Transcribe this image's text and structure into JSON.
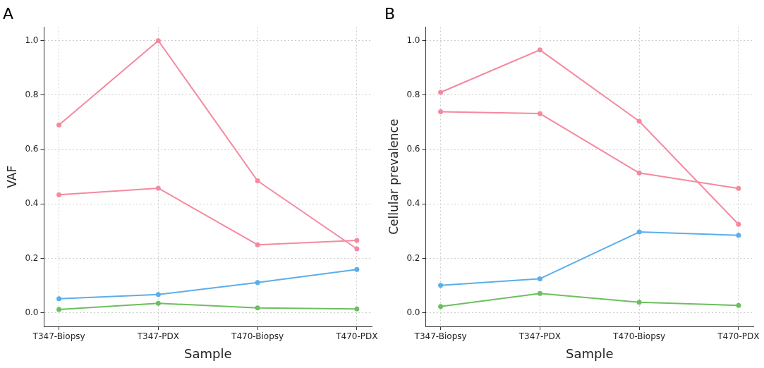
{
  "chart_data": [
    {
      "type": "line",
      "title": "A",
      "xlabel": "Sample",
      "ylabel": "VAF",
      "categories": [
        "T347-Biopsy",
        "T347-PDX",
        "T470-Biopsy",
        "T470-PDX"
      ],
      "ylim": [
        -0.05,
        1.05
      ],
      "yticks": [
        {
          "value": 0,
          "label": "0.0"
        },
        {
          "value": 0.2,
          "label": "0.2"
        },
        {
          "value": 0.4,
          "label": "0.4"
        },
        {
          "value": 0.6,
          "label": "0.6"
        },
        {
          "value": 0.8,
          "label": "0.8"
        },
        {
          "value": 1,
          "label": "1.0"
        }
      ],
      "grid": true,
      "legend": false,
      "marker": "circle",
      "line_style": "solid",
      "series": [
        {
          "color": "#f5899e",
          "values": [
            0.69,
            1.0,
            0.485,
            0.235
          ]
        },
        {
          "color": "#f5899e",
          "values": [
            0.434,
            0.458,
            0.25,
            0.266
          ]
        },
        {
          "color": "#5aaeea",
          "values": [
            0.052,
            0.067,
            0.111,
            0.159
          ]
        },
        {
          "color": "#6cbf5e",
          "values": [
            0.012,
            0.035,
            0.018,
            0.014
          ]
        }
      ]
    },
    {
      "type": "line",
      "title": "B",
      "xlabel": "Sample",
      "ylabel": "Cellular prevalence",
      "categories": [
        "T347-Biopsy",
        "T347-PDX",
        "T470-Biopsy",
        "T470-PDX"
      ],
      "ylim": [
        -0.05,
        1.05
      ],
      "yticks": [
        {
          "value": 0,
          "label": "0.0"
        },
        {
          "value": 0.2,
          "label": "0.2"
        },
        {
          "value": 0.4,
          "label": "0.4"
        },
        {
          "value": 0.6,
          "label": "0.6"
        },
        {
          "value": 0.8,
          "label": "0.8"
        },
        {
          "value": 1,
          "label": "1.0"
        }
      ],
      "grid": true,
      "legend": false,
      "marker": "circle",
      "line_style": "solid",
      "series": [
        {
          "color": "#f5899e",
          "values": [
            0.81,
            0.966,
            0.704,
            0.325
          ]
        },
        {
          "color": "#f5899e",
          "values": [
            0.739,
            0.732,
            0.514,
            0.457
          ]
        },
        {
          "color": "#5aaeea",
          "values": [
            0.101,
            0.125,
            0.297,
            0.285
          ]
        },
        {
          "color": "#6cbf5e",
          "values": [
            0.023,
            0.071,
            0.039,
            0.027
          ]
        }
      ]
    }
  ]
}
